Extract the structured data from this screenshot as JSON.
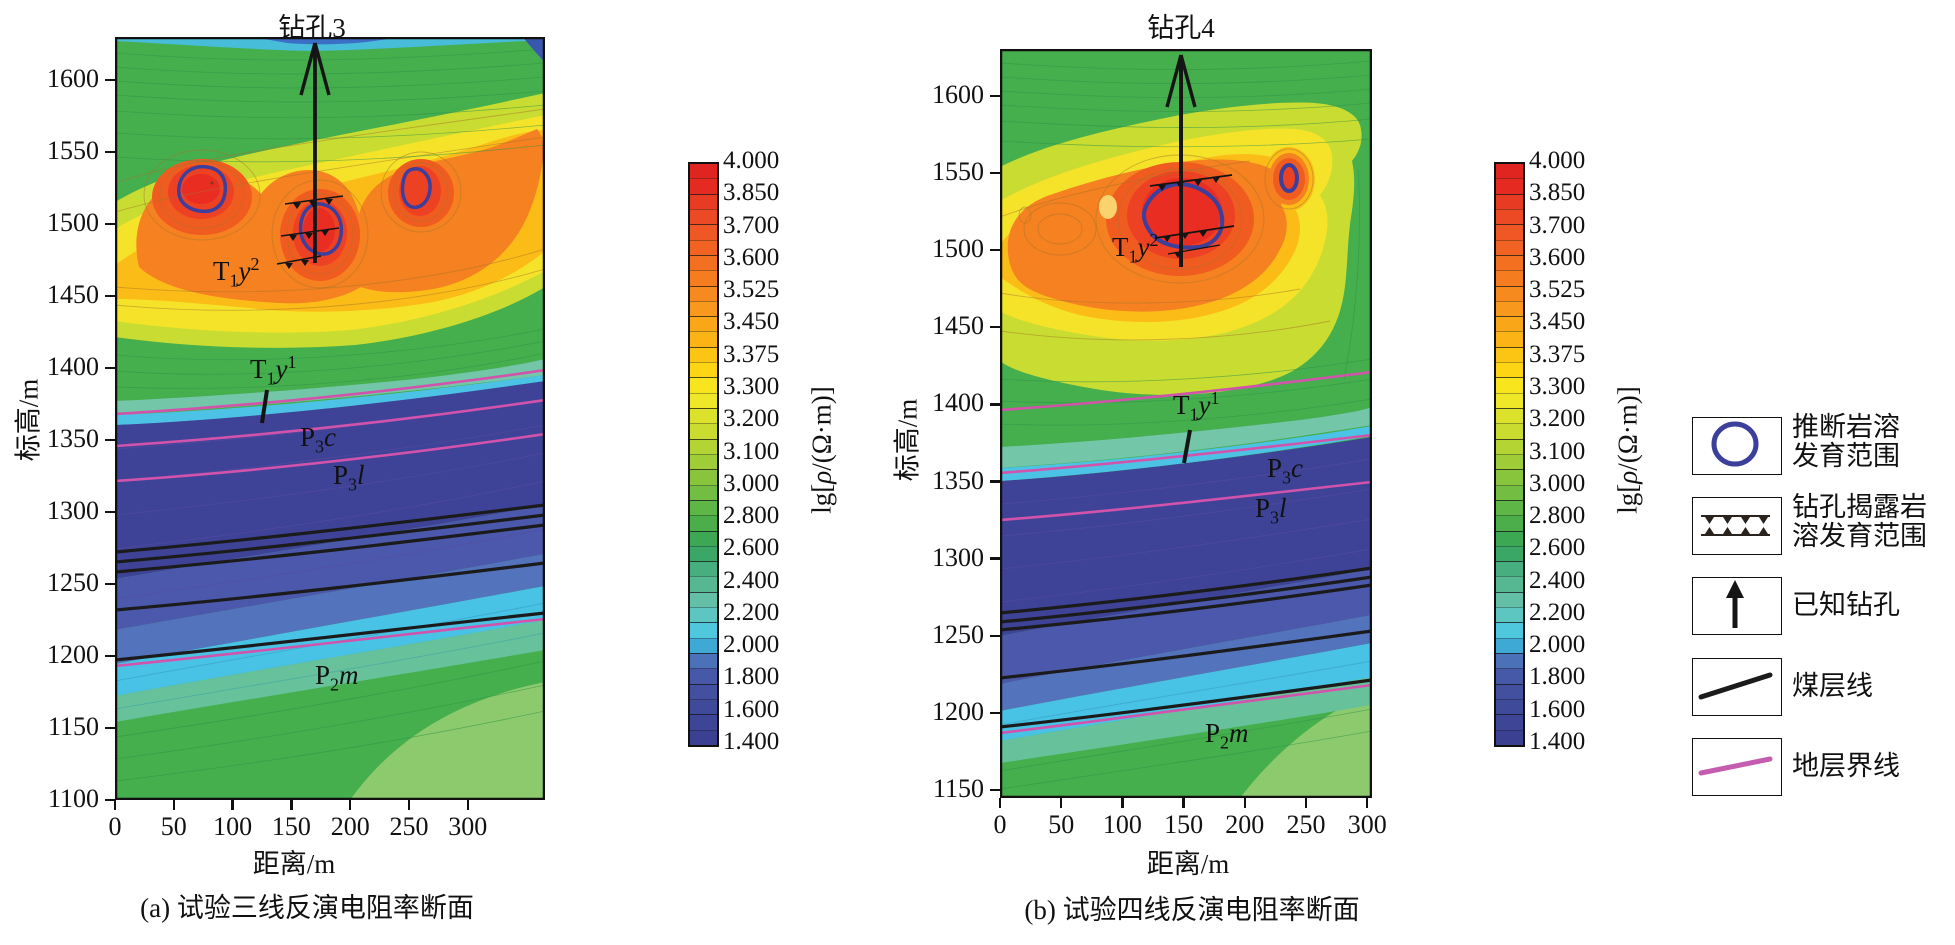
{
  "page": {
    "background": "#ffffff"
  },
  "panels": [
    {
      "title": "钻孔3",
      "caption": "(a) 试验三线反演电阻率断面",
      "xlabel": "距离/m",
      "ylabel": "标高/m",
      "x_ticks": [
        "0",
        "50",
        "100",
        "150",
        "200",
        "250",
        "300"
      ],
      "y_ticks": [
        "1600",
        "1550",
        "1500",
        "1450",
        "1400",
        "1350",
        "1300",
        "1250",
        "1200",
        "1150",
        "1100"
      ],
      "strata": [
        {
          "base": "T",
          "sub": "1",
          "mid": "y",
          "sup": "2"
        },
        {
          "base": "T",
          "sub": "1",
          "mid": "y",
          "sup": "1"
        },
        {
          "base": "P",
          "sub": "3",
          "mid": "c"
        },
        {
          "base": "P",
          "sub": "3",
          "mid": "l"
        },
        {
          "base": "P",
          "sub": "2",
          "mid": "m"
        }
      ]
    },
    {
      "title": "钻孔4",
      "caption": "(b) 试验四线反演电阻率断面",
      "xlabel": "距离/m",
      "ylabel": "标高/m",
      "x_ticks": [
        "0",
        "50",
        "100",
        "150",
        "200",
        "250",
        "300"
      ],
      "y_ticks": [
        "1600",
        "1550",
        "1500",
        "1450",
        "1400",
        "1350",
        "1300",
        "1250",
        "1200",
        "1150"
      ],
      "strata": [
        {
          "base": "T",
          "sub": "1",
          "mid": "y",
          "sup": "2"
        },
        {
          "base": "T",
          "sub": "1",
          "mid": "y",
          "sup": "1"
        },
        {
          "base": "P",
          "sub": "3",
          "mid": "c"
        },
        {
          "base": "P",
          "sub": "3",
          "mid": "l"
        },
        {
          "base": "P",
          "sub": "2",
          "mid": "m"
        }
      ]
    }
  ],
  "colorbar": {
    "title": "lg[ρ/(Ω·m)]",
    "title_parts": [
      "lg[",
      "ρ",
      "/(Ω·m)]"
    ],
    "ticks": [
      "4.000",
      "3.850",
      "3.700",
      "3.600",
      "3.525",
      "3.450",
      "3.375",
      "3.300",
      "3.200",
      "3.100",
      "3.000",
      "2.800",
      "2.600",
      "2.400",
      "2.200",
      "2.000",
      "1.800",
      "1.600",
      "1.400"
    ],
    "cell_colors": [
      "#e02420",
      "#e52a21",
      "#e83b24",
      "#ec4a25",
      "#ef5724",
      "#f16322",
      "#f37021",
      "#f57d20",
      "#f78a1e",
      "#f8981c",
      "#faa619",
      "#fbb316",
      "#fcc413",
      "#fdd514",
      "#f9e51d",
      "#eee828",
      "#dce22b",
      "#cadc2f",
      "#b4d434",
      "#9ecd38",
      "#88c53d",
      "#73be42",
      "#5eb647",
      "#4bae4b",
      "#3ca854",
      "#3ba766",
      "#47af7f",
      "#55b893",
      "#63c0a6",
      "#5ec6c0",
      "#4fc7dd",
      "#3fa9d6",
      "#4b72b8",
      "#4559a8",
      "#42509f",
      "#404a9b",
      "#3e4597",
      "#3c4093"
    ]
  },
  "legend": {
    "items": [
      {
        "icon": "karst-circle-icon",
        "lines": [
          "推断岩溶",
          "发育范围"
        ]
      },
      {
        "icon": "borehole-karst-hatch-icon",
        "lines": [
          "钻孔揭露岩",
          "溶发育范围"
        ]
      },
      {
        "icon": "known-borehole-arrow-icon",
        "lines": [
          "已知钻孔"
        ]
      },
      {
        "icon": "coal-seam-line-icon",
        "lines": [
          "煤层线"
        ]
      },
      {
        "icon": "stratum-boundary-line-icon",
        "lines": [
          "地层界线"
        ]
      }
    ],
    "colors": {
      "karst_circle": "#3c3f9c",
      "coal_line": "#1b1b1b",
      "stratum_line": "#d253ab"
    }
  },
  "chart_data": {
    "type": "heatmap",
    "subtype": "filled-contour-resistivity-cross-section",
    "value_label": "lg[ρ/(Ω·m)]",
    "contour_levels": [
      4.0,
      3.85,
      3.7,
      3.6,
      3.525,
      3.45,
      3.375,
      3.3,
      3.2,
      3.1,
      3.0,
      2.8,
      2.6,
      2.4,
      2.2,
      2.0,
      1.8,
      1.6,
      1.4
    ],
    "colorbar_range": [
      1.4,
      4.0
    ],
    "legend_position": "right",
    "sections": [
      {
        "label": "(a) 试验三线反演电阻率断面",
        "borehole": "钻孔3",
        "xlabel": "距离/m",
        "ylabel": "标高/m",
        "xlim": [
          0,
          345
        ],
        "ylim": [
          1100,
          1630
        ],
        "high_resistivity_zone": {
          "elev_range": [
            1430,
            1560
          ],
          "approx_max_lg_rho": 3.9
        },
        "low_resistivity_zone": {
          "elev_range": [
            1230,
            1360
          ],
          "approx_min_lg_rho": 1.5
        },
        "inferred_karst_zones_xm_elev": [
          [
            70,
            1525
          ],
          [
            160,
            1497
          ],
          [
            245,
            1525
          ]
        ],
        "borehole_revealed_karst": {
          "x_m": 160,
          "elev_range": [
            1480,
            1520
          ]
        },
        "strata_labels": [
          "T1y2",
          "T1y1",
          "P3c",
          "P3l",
          "P2m"
        ],
        "coal_seam_lines": 5,
        "stratum_boundary_lines": 4
      },
      {
        "label": "(b) 试验四线反演电阻率断面",
        "borehole": "钻孔4",
        "xlabel": "距离/m",
        "ylabel": "标高/m",
        "xlim": [
          0,
          300
        ],
        "ylim": [
          1150,
          1632
        ],
        "high_resistivity_zone": {
          "elev_range": [
            1440,
            1580
          ],
          "approx_max_lg_rho": 3.95
        },
        "low_resistivity_zone": {
          "elev_range": [
            1230,
            1350
          ],
          "approx_min_lg_rho": 1.5
        },
        "inferred_karst_zones_xm_elev": [
          [
            145,
            1525
          ],
          [
            232,
            1548
          ]
        ],
        "borehole_revealed_karst": {
          "x_m": 145,
          "elev_range": [
            1500,
            1545
          ]
        },
        "strata_labels": [
          "T1y2",
          "T1y1",
          "P3c",
          "P3l",
          "P2m"
        ],
        "coal_seam_lines": 5,
        "stratum_boundary_lines": 4
      }
    ]
  }
}
